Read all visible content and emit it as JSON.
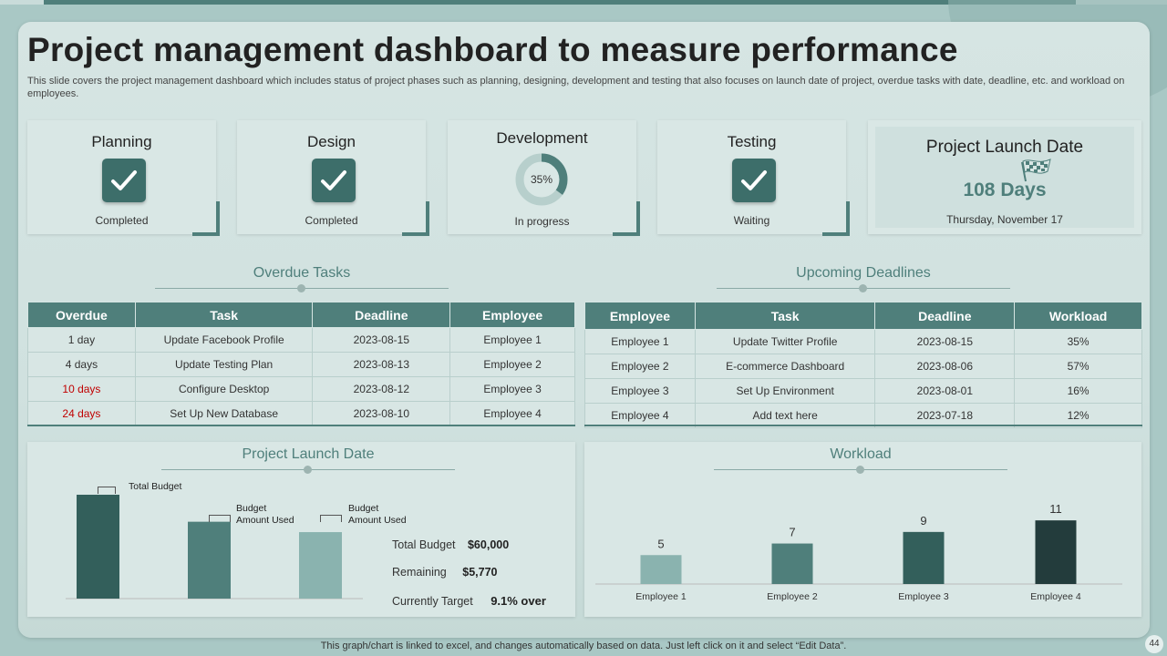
{
  "slide": {
    "title": "Project management dashboard to measure performance",
    "description": "This slide covers the project management dashboard which includes status of project phases such as planning, designing, development and testing that also focuses on launch date of project, overdue tasks with date, deadline, etc. and workload on employees.",
    "footer_note": "This graph/chart is linked to excel, and changes automatically based on data. Just left click on it and select “Edit Data”.",
    "page_number": "44"
  },
  "phases": [
    {
      "name": "Planning",
      "status": "Completed",
      "icon": "check-icon"
    },
    {
      "name": "Design",
      "status": "Completed",
      "icon": "check-icon"
    },
    {
      "name": "Development",
      "status": "In progress",
      "progress_label": "35%",
      "progress": 0.35
    },
    {
      "name": "Testing",
      "status": "Waiting",
      "icon": "check-icon"
    }
  ],
  "launch": {
    "title": "Project Launch Date",
    "days": "108 Days",
    "date": "Thursday,  November  17",
    "icon": "checkered-flag-icon"
  },
  "overdue": {
    "title": "Overdue Tasks",
    "columns": [
      "Overdue",
      "Task",
      "Deadline",
      "Employee"
    ],
    "rows": [
      {
        "overdue": "1 day",
        "task": "Update Facebook Profile",
        "deadline": "2023-08-15",
        "employee": "Employee 1",
        "late": false
      },
      {
        "overdue": "4 days",
        "task": "Update Testing Plan",
        "deadline": "2023-08-13",
        "employee": "Employee 2",
        "late": false
      },
      {
        "overdue": "10 days",
        "task": "Configure Desktop",
        "deadline": "2023-08-12",
        "employee": "Employee 3",
        "late": true
      },
      {
        "overdue": "24 days",
        "task": "Set Up New Database",
        "deadline": "2023-08-10",
        "employee": "Employee 4",
        "late": true
      }
    ]
  },
  "upcoming": {
    "title": "Upcoming Deadlines",
    "columns": [
      "Employee",
      "Task",
      "Deadline",
      "Workload"
    ],
    "rows": [
      {
        "employee": "Employee 1",
        "task": "Update Twitter Profile",
        "deadline": "2023-08-15",
        "workload": "35%"
      },
      {
        "employee": "Employee 2",
        "task": "E-commerce Dashboard",
        "deadline": "2023-08-06",
        "workload": "57%"
      },
      {
        "employee": "Employee 3",
        "task": "Set Up Environment",
        "deadline": "2023-08-01",
        "workload": "16%"
      },
      {
        "employee": "Employee 4",
        "task": "Add text here",
        "deadline": "2023-07-18",
        "workload": "12%"
      }
    ]
  },
  "budget_card": {
    "title": "Project Launch Date",
    "annotations": [
      "Total Budget",
      "Budget\nAmount Used",
      "Budget\nAmount Used"
    ],
    "summary": [
      {
        "label": "Total Budget",
        "value": "$60,000"
      },
      {
        "label": "Remaining",
        "value": "$5,770"
      },
      {
        "label": "Currently Target",
        "value": "9.1%  over"
      }
    ]
  },
  "workload_card": {
    "title": "Workload"
  },
  "chart_data": [
    {
      "type": "bar",
      "categories": [
        "Total Budget",
        "Budget Amount Used",
        "Budget Amount Used"
      ],
      "values": [
        100,
        74,
        64
      ],
      "colors": [
        "#335f5b",
        "#4f7f7b",
        "#8ab3af"
      ],
      "title": "Project Launch Date"
    },
    {
      "type": "bar",
      "categories": [
        "Employee 1",
        "Employee 2",
        "Employee 3",
        "Employee 4"
      ],
      "values": [
        5,
        7,
        9,
        11
      ],
      "colors": [
        "#8ab3af",
        "#4f7f7b",
        "#335f5b",
        "#233c3c"
      ],
      "title": "Workload"
    }
  ],
  "colors": {
    "accent": "#4f7f7b",
    "dark": "#233c3c",
    "late_red": "#c00000"
  }
}
